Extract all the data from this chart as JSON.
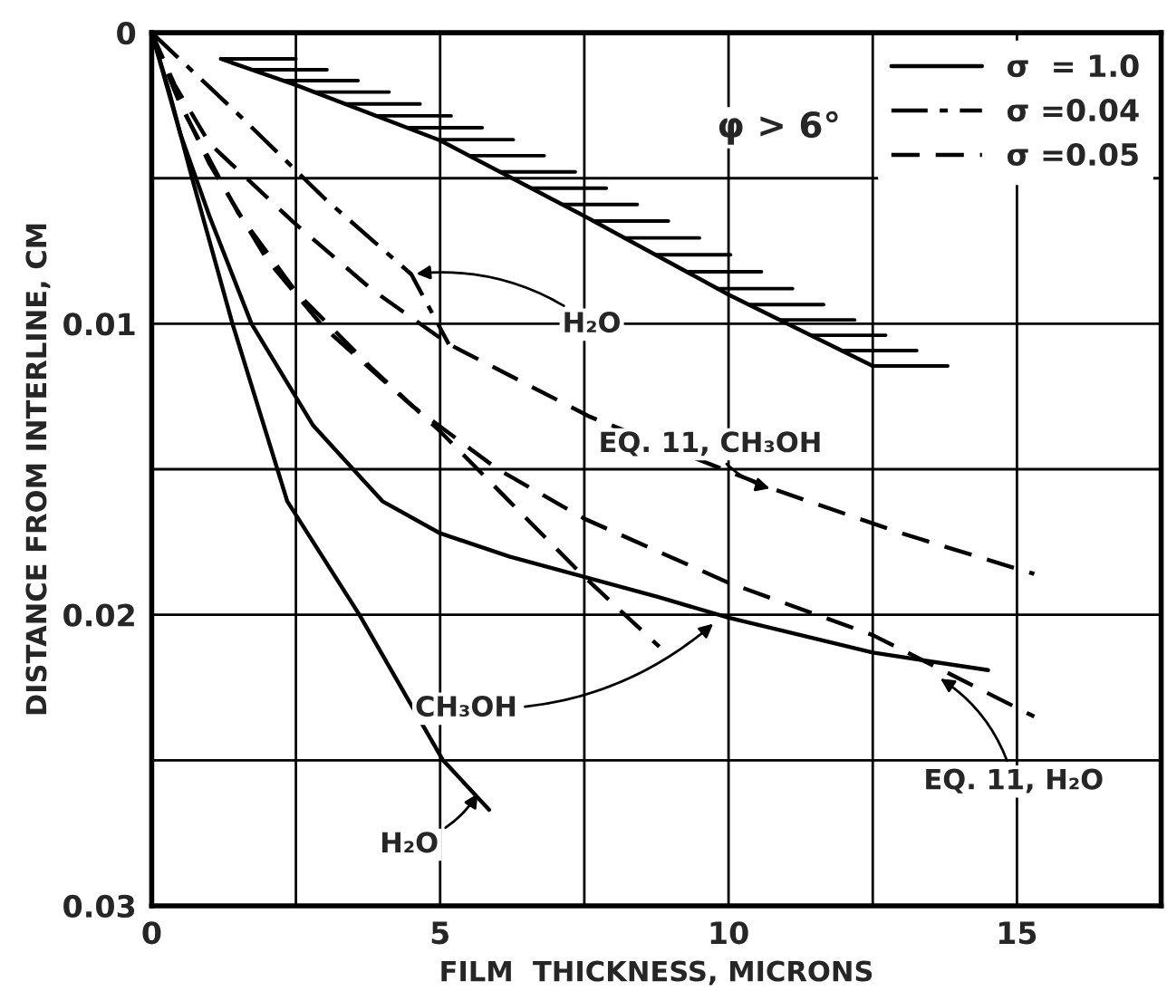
{
  "chart_data": {
    "type": "line",
    "xlabel": "FILM  THICKNESS, MICRONS",
    "ylabel": "DISTANCE FROM INTERLINE, CM",
    "xlim": [
      0,
      17.5
    ],
    "ylim": [
      0.03,
      0
    ],
    "xticks": [
      0,
      {
        "value": 2.5,
        "label": null
      },
      5,
      {
        "value": 7.5,
        "label": null
      },
      10,
      {
        "value": 12.5,
        "label": null
      },
      15
    ],
    "yticks": [
      0,
      {
        "value": 0.005,
        "label": null
      },
      0.01,
      {
        "value": 0.015,
        "label": null
      },
      0.02,
      {
        "value": 0.025,
        "label": null
      },
      0.03
    ],
    "grid": true,
    "legend": "top right",
    "series": [
      {
        "name": "σ  = 1.0",
        "color": "#000000",
        "line_style": "solid",
        "x": [
          0,
          0.3,
          0.7,
          1.4,
          2.35,
          3.6,
          5.05,
          5.85
        ],
        "values": [
          0,
          0.002,
          0.005,
          0.01,
          0.0161,
          0.02,
          0.025,
          0.0267
        ]
      },
      {
        "name": "σ =0.04",
        "color": "#000000",
        "line_style": "dashdot",
        "x": [
          0,
          1.5,
          3,
          4.5,
          5.15
        ],
        "values": [
          0,
          0.0028,
          0.0057,
          0.0083,
          0.0107
        ]
      },
      {
        "name": "σ =0.05",
        "color": "#000000",
        "line_style": "dashed",
        "x": [
          0,
          0.5,
          1.5,
          2.5,
          3.8,
          5,
          6.2,
          7.5,
          8.8
        ],
        "values": [
          0,
          0.0025,
          0.0062,
          0.0089,
          0.0115,
          0.0137,
          0.0161,
          0.0187,
          0.0211
        ]
      },
      {
        "color": "#000000",
        "line_style": "solid",
        "x": [
          0,
          0.5,
          1.0,
          1.73,
          2.8,
          4.0,
          5,
          6.2,
          7.5,
          8.8,
          10,
          12.5,
          14.5
        ],
        "values": [
          0,
          0.0035,
          0.0063,
          0.01,
          0.0135,
          0.0161,
          0.0172,
          0.018,
          0.0187,
          0.0194,
          0.0201,
          0.0213,
          0.0219
        ]
      },
      {
        "color": "#000000",
        "line_style": "solid",
        "x": [
          1.2,
          2.5,
          5,
          7.5,
          10,
          12.5
        ],
        "values": [
          0.0009,
          0.0018,
          0.0037,
          0.0063,
          0.009,
          0.01145
        ]
      },
      {
        "color": "#000000",
        "line_style": "dashed",
        "x": [
          0,
          0.4,
          1,
          2.45,
          3.8,
          5.15,
          7.6,
          10.8,
          13,
          15.3
        ],
        "values": [
          0,
          0.0018,
          0.0038,
          0.0065,
          0.0088,
          0.0107,
          0.0132,
          0.0157,
          0.0172,
          0.0186
        ]
      },
      {
        "color": "#000000",
        "line_style": "dashed",
        "x": [
          0,
          0.4,
          1,
          2,
          2.97,
          4.5,
          6,
          7.5,
          10,
          12.5,
          15.3
        ],
        "values": [
          0,
          0.002,
          0.0045,
          0.0078,
          0.0101,
          0.0128,
          0.015,
          0.0167,
          0.0189,
          0.0207,
          0.0235
        ]
      }
    ],
    "annotations": [
      "φ > 6°",
      {
        "text": "H₂O",
        "x": 4.5,
        "y": 0.0083
      },
      {
        "text": "EQ. 11, CH₃OH",
        "x": 10.8,
        "y": 0.0157
      },
      {
        "text": "CH₃OH",
        "x": 9.8,
        "y": 0.0202
      },
      {
        "text": "H₂O",
        "x": 5.7,
        "y": 0.026
      },
      {
        "text": "EQ. 11, H₂O",
        "x": 13.6,
        "y": 0.0221
      }
    ]
  }
}
